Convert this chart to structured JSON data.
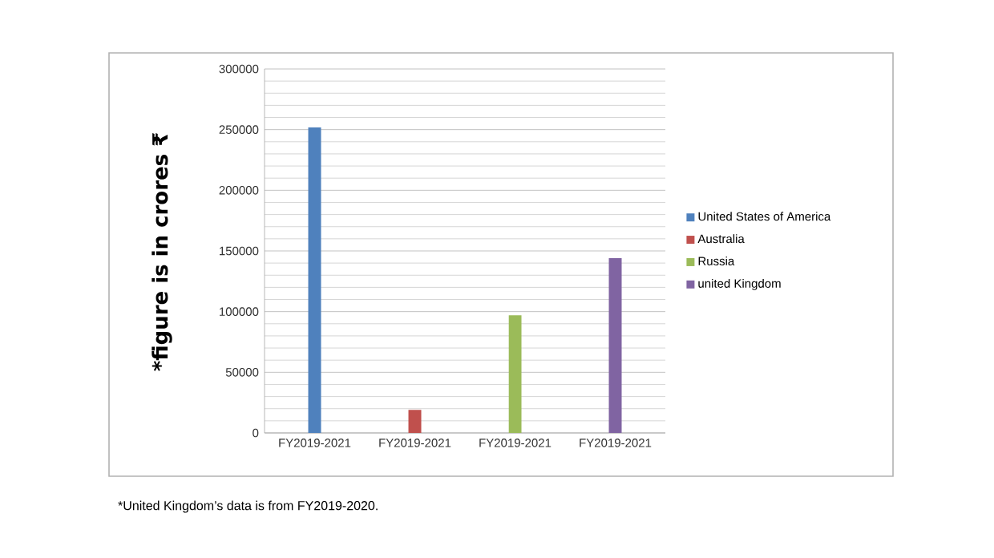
{
  "chart_data": {
    "type": "bar",
    "ylabel": "*figure is in crores ₹",
    "categories": [
      "FY2019-2021",
      "FY2019-2021",
      "FY2019-2021",
      "FY2019-2021"
    ],
    "series": [
      {
        "name": "United States of America",
        "color": "#4f81bd",
        "values": [
          252000,
          null,
          null,
          null
        ]
      },
      {
        "name": "Australia",
        "color": "#c0504d",
        "values": [
          null,
          19000,
          null,
          null
        ]
      },
      {
        "name": "Russia",
        "color": "#9bbb59",
        "values": [
          null,
          null,
          97000,
          null
        ]
      },
      {
        "name": "united Kingdom",
        "color": "#8064a2",
        "values": [
          null,
          null,
          null,
          144000
        ]
      }
    ],
    "ylim": [
      0,
      300000
    ],
    "yticks": [
      0,
      50000,
      100000,
      150000,
      200000,
      250000,
      300000
    ],
    "grid": "y",
    "legend": "right",
    "annotations": [
      "*United Kingdom’s data is from FY2019-2020."
    ]
  }
}
